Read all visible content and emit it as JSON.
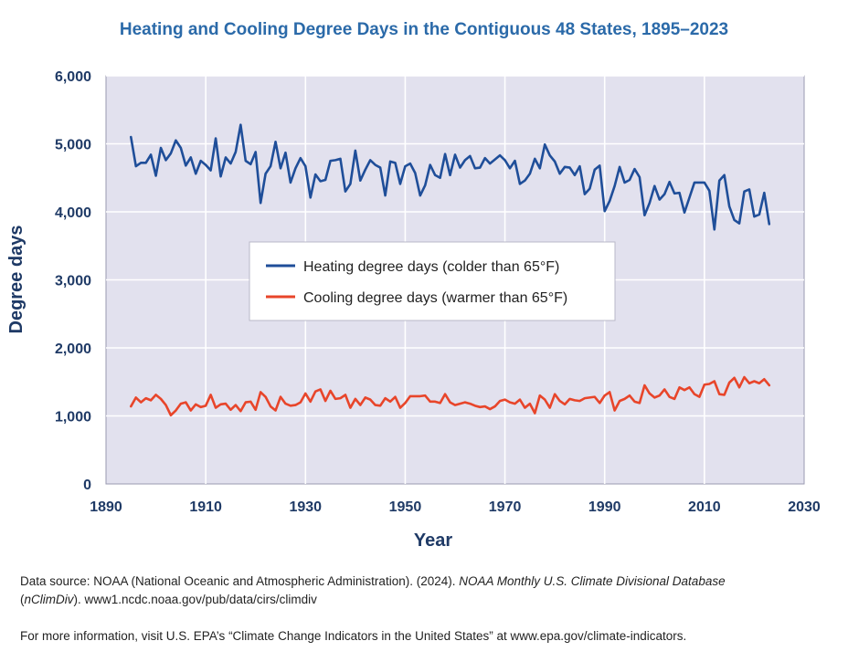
{
  "chart_data": {
    "type": "line",
    "title": "Heating and Cooling Degree Days in the Contiguous 48 States, 1895–2023",
    "xlabel": "Year",
    "ylabel": "Degree days",
    "xlim": [
      1890,
      2030
    ],
    "ylim": [
      0,
      6000
    ],
    "xticks": [
      1890,
      1910,
      1930,
      1950,
      1970,
      1990,
      2010,
      2030
    ],
    "yticks": [
      0,
      1000,
      2000,
      3000,
      4000,
      5000,
      6000
    ],
    "ytick_labels": [
      "0",
      "1,000",
      "2,000",
      "3,000",
      "4,000",
      "5,000",
      "6,000"
    ],
    "grid": true,
    "legend_position": "center",
    "x": [
      1895,
      1896,
      1897,
      1898,
      1899,
      1900,
      1901,
      1902,
      1903,
      1904,
      1905,
      1906,
      1907,
      1908,
      1909,
      1910,
      1911,
      1912,
      1913,
      1914,
      1915,
      1916,
      1917,
      1918,
      1919,
      1920,
      1921,
      1922,
      1923,
      1924,
      1925,
      1926,
      1927,
      1928,
      1929,
      1930,
      1931,
      1932,
      1933,
      1934,
      1935,
      1936,
      1937,
      1938,
      1939,
      1940,
      1941,
      1942,
      1943,
      1944,
      1945,
      1946,
      1947,
      1948,
      1949,
      1950,
      1951,
      1952,
      1953,
      1954,
      1955,
      1956,
      1957,
      1958,
      1959,
      1960,
      1961,
      1962,
      1963,
      1964,
      1965,
      1966,
      1967,
      1968,
      1969,
      1970,
      1971,
      1972,
      1973,
      1974,
      1975,
      1976,
      1977,
      1978,
      1979,
      1980,
      1981,
      1982,
      1983,
      1984,
      1985,
      1986,
      1987,
      1988,
      1989,
      1990,
      1991,
      1992,
      1993,
      1994,
      1995,
      1996,
      1997,
      1998,
      1999,
      2000,
      2001,
      2002,
      2003,
      2004,
      2005,
      2006,
      2007,
      2008,
      2009,
      2010,
      2011,
      2012,
      2013,
      2014,
      2015,
      2016,
      2017,
      2018,
      2019,
      2020,
      2021,
      2022,
      2023
    ],
    "series": [
      {
        "name": "Heating degree days (colder than 65°F)",
        "color": "#1f4e99",
        "values": [
          5100,
          4670,
          4720,
          4720,
          4840,
          4530,
          4940,
          4760,
          4860,
          5050,
          4940,
          4680,
          4800,
          4560,
          4750,
          4690,
          4610,
          5080,
          4520,
          4800,
          4710,
          4880,
          5280,
          4750,
          4700,
          4880,
          4130,
          4560,
          4670,
          5030,
          4640,
          4870,
          4430,
          4640,
          4790,
          4670,
          4210,
          4550,
          4450,
          4470,
          4750,
          4760,
          4780,
          4300,
          4410,
          4900,
          4460,
          4620,
          4760,
          4690,
          4650,
          4240,
          4740,
          4720,
          4410,
          4670,
          4710,
          4570,
          4240,
          4390,
          4690,
          4540,
          4500,
          4850,
          4540,
          4840,
          4650,
          4760,
          4820,
          4640,
          4650,
          4790,
          4710,
          4770,
          4830,
          4760,
          4640,
          4750,
          4410,
          4460,
          4560,
          4780,
          4640,
          4990,
          4830,
          4740,
          4560,
          4660,
          4650,
          4540,
          4670,
          4260,
          4340,
          4620,
          4680,
          4010,
          4160,
          4380,
          4660,
          4430,
          4470,
          4630,
          4510,
          3950,
          4130,
          4380,
          4180,
          4260,
          4440,
          4270,
          4280,
          3990,
          4210,
          4430,
          4430,
          4430,
          4310,
          3740,
          4460,
          4540,
          4080,
          3880,
          3830,
          4300,
          4330,
          3930,
          3960,
          4280,
          3820
        ]
      },
      {
        "name": "Cooling degree days (warmer than 65°F)",
        "color": "#e8452a",
        "values": [
          1140,
          1270,
          1200,
          1260,
          1230,
          1310,
          1250,
          1160,
          1010,
          1080,
          1180,
          1200,
          1080,
          1170,
          1130,
          1150,
          1310,
          1120,
          1170,
          1180,
          1090,
          1160,
          1070,
          1200,
          1210,
          1090,
          1350,
          1280,
          1140,
          1080,
          1280,
          1180,
          1150,
          1160,
          1200,
          1330,
          1210,
          1360,
          1390,
          1220,
          1370,
          1250,
          1260,
          1310,
          1120,
          1250,
          1160,
          1270,
          1240,
          1160,
          1150,
          1260,
          1210,
          1280,
          1120,
          1190,
          1290,
          1290,
          1290,
          1300,
          1210,
          1210,
          1190,
          1320,
          1200,
          1160,
          1180,
          1200,
          1180,
          1150,
          1130,
          1140,
          1100,
          1140,
          1220,
          1240,
          1200,
          1180,
          1240,
          1120,
          1180,
          1040,
          1300,
          1240,
          1120,
          1320,
          1220,
          1170,
          1250,
          1230,
          1220,
          1260,
          1270,
          1280,
          1190,
          1300,
          1350,
          1080,
          1220,
          1250,
          1300,
          1210,
          1190,
          1450,
          1330,
          1270,
          1300,
          1390,
          1280,
          1250,
          1420,
          1380,
          1420,
          1320,
          1280,
          1460,
          1470,
          1510,
          1320,
          1310,
          1490,
          1560,
          1420,
          1570,
          1480,
          1510,
          1480,
          1540,
          1450
        ]
      }
    ]
  },
  "footer": {
    "source_prefix": "Data source: NOAA (National Oceanic and Atmospheric Administration). (2024). ",
    "source_italic": "NOAA Monthly U.S. Climate Divisional Database",
    "source_line2_pre": "(",
    "source_line2_italic": "nClimDiv",
    "source_line2_post": "). www1.ncdc.noaa.gov/pub/data/cirs/climdiv",
    "more_info": "For more information, visit U.S. EPA’s “Climate Change Indicators in the United States” at www.epa.gov/climate-indicators."
  }
}
